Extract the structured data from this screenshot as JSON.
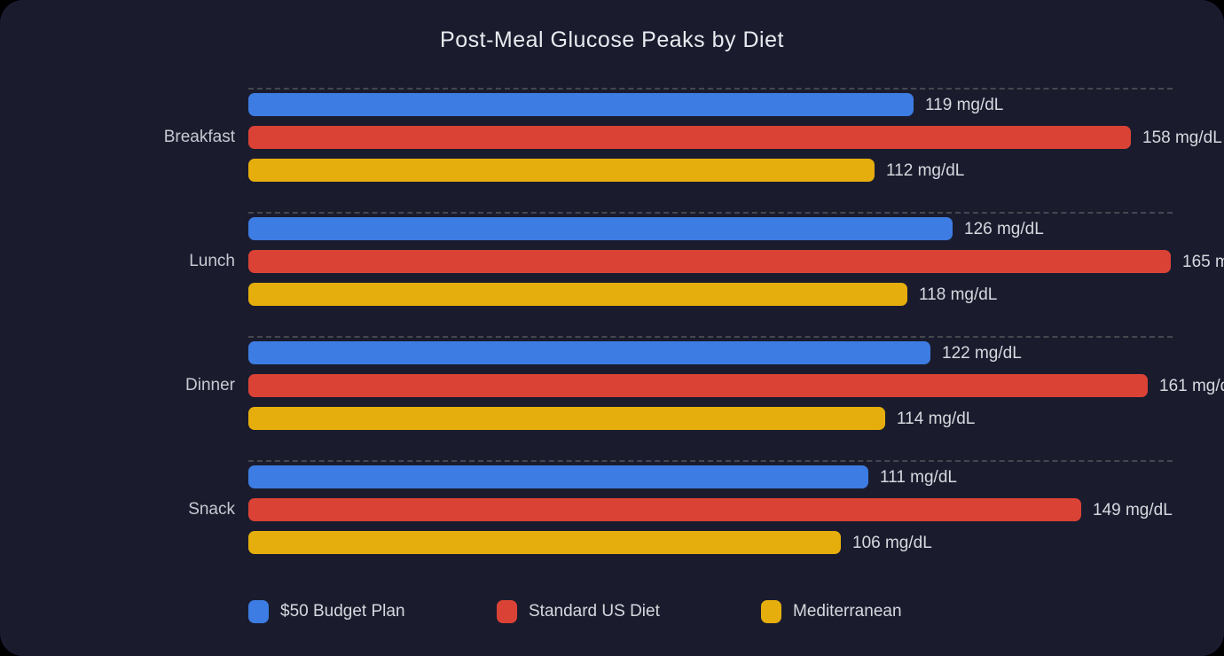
{
  "chart_data": {
    "type": "bar",
    "orientation": "horizontal",
    "title": "Post-Meal Glucose Peaks by Diet",
    "categories": [
      "Breakfast",
      "Lunch",
      "Dinner",
      "Snack"
    ],
    "series": [
      {
        "name": "$50 Budget Plan",
        "color": "#3d7ce2",
        "values": [
          119,
          126,
          122,
          111
        ]
      },
      {
        "name": "Standard US Diet",
        "color": "#db4236",
        "values": [
          158,
          165,
          161,
          149
        ]
      },
      {
        "name": "Mediterranean",
        "color": "#e6ae0d",
        "values": [
          112,
          118,
          114,
          106
        ]
      }
    ],
    "value_suffix": " mg/dL",
    "xlim": [
      0,
      165
    ],
    "grid": "dashed group separators",
    "legend_position": "bottom"
  },
  "theme": {
    "page_background": "#000000",
    "card_background": "#1a1c2e",
    "title_color": "#e9eaef",
    "label_color": "#c7c9d1",
    "value_color": "#d7d8de",
    "separator_color": "#45474f"
  }
}
